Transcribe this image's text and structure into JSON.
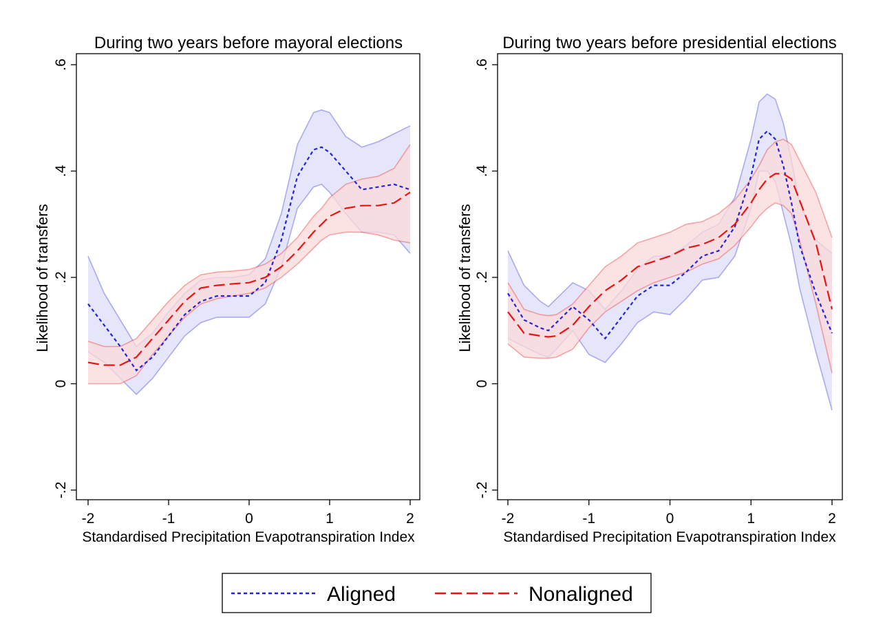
{
  "legend": {
    "items": [
      {
        "label": "Aligned",
        "color": "#2222dd",
        "style": "dotted"
      },
      {
        "label": "Nonaligned",
        "color": "#ee1111",
        "style": "dashed"
      }
    ]
  },
  "chart_data": [
    {
      "type": "line",
      "title": "During two years before mayoral elections",
      "xlabel": "Standardised Precipitation Evapotranspiration Index",
      "ylabel": "Likelihood of transfers",
      "xlim": [
        -2,
        2
      ],
      "ylim": [
        -0.2,
        0.6
      ],
      "xticks": [
        -2,
        -1,
        0,
        1,
        2
      ],
      "xtick_labels": [
        "-2",
        "-1",
        "0",
        "1",
        "2"
      ],
      "yticks": [
        -0.2,
        0,
        0.2,
        0.4,
        0.6
      ],
      "ytick_labels": [
        "-.2",
        "0",
        ".2",
        ".4",
        ".6"
      ],
      "grid": false,
      "x": [
        -2.0,
        -1.8,
        -1.6,
        -1.4,
        -1.2,
        -1.0,
        -0.8,
        -0.6,
        -0.4,
        -0.2,
        0.0,
        0.2,
        0.4,
        0.6,
        0.8,
        0.9,
        1.0,
        1.2,
        1.4,
        1.6,
        1.8,
        2.0
      ],
      "series": [
        {
          "name": "Aligned",
          "color": "#2222dd",
          "fill": "#dedefa",
          "values": [
            0.15,
            0.11,
            0.07,
            0.025,
            0.05,
            0.09,
            0.13,
            0.155,
            0.165,
            0.165,
            0.165,
            0.19,
            0.27,
            0.39,
            0.44,
            0.445,
            0.435,
            0.4,
            0.365,
            0.37,
            0.375,
            0.365
          ],
          "lower": [
            0.06,
            0.04,
            0.01,
            -0.02,
            0.01,
            0.05,
            0.09,
            0.115,
            0.125,
            0.125,
            0.125,
            0.15,
            0.22,
            0.33,
            0.37,
            0.375,
            0.36,
            0.32,
            0.285,
            0.285,
            0.28,
            0.245
          ],
          "upper": [
            0.24,
            0.17,
            0.12,
            0.07,
            0.095,
            0.135,
            0.17,
            0.195,
            0.2,
            0.2,
            0.205,
            0.235,
            0.32,
            0.45,
            0.51,
            0.515,
            0.51,
            0.465,
            0.445,
            0.455,
            0.47,
            0.485
          ]
        },
        {
          "name": "Nonaligned",
          "color": "#ee1111",
          "fill": "#fbdada",
          "values": [
            0.04,
            0.035,
            0.035,
            0.05,
            0.085,
            0.12,
            0.155,
            0.18,
            0.185,
            0.188,
            0.19,
            0.2,
            0.22,
            0.25,
            0.285,
            0.3,
            0.315,
            0.33,
            0.335,
            0.335,
            0.34,
            0.36
          ],
          "lower": [
            0.0,
            0.0,
            0.0,
            0.015,
            0.055,
            0.09,
            0.125,
            0.15,
            0.16,
            0.165,
            0.17,
            0.18,
            0.2,
            0.225,
            0.255,
            0.27,
            0.28,
            0.285,
            0.285,
            0.28,
            0.27,
            0.265
          ],
          "upper": [
            0.08,
            0.07,
            0.07,
            0.085,
            0.12,
            0.155,
            0.185,
            0.205,
            0.21,
            0.212,
            0.215,
            0.225,
            0.245,
            0.275,
            0.315,
            0.33,
            0.35,
            0.375,
            0.385,
            0.39,
            0.405,
            0.45
          ]
        }
      ]
    },
    {
      "type": "line",
      "title": "During two years before presidential elections",
      "xlabel": "Standardised Precipitation Evapotranspiration Index",
      "ylabel": "Likelihood of transfers",
      "xlim": [
        -2,
        2
      ],
      "ylim": [
        -0.2,
        0.6
      ],
      "xticks": [
        -2,
        -1,
        0,
        1,
        2
      ],
      "xtick_labels": [
        "-2",
        "-1",
        "0",
        "1",
        "2"
      ],
      "yticks": [
        -0.2,
        0,
        0.2,
        0.4,
        0.6
      ],
      "ytick_labels": [
        "-.2",
        "0",
        ".2",
        ".4",
        ".6"
      ],
      "grid": false,
      "x": [
        -2.0,
        -1.8,
        -1.6,
        -1.5,
        -1.4,
        -1.2,
        -1.0,
        -0.8,
        -0.6,
        -0.4,
        -0.2,
        0.0,
        0.2,
        0.4,
        0.6,
        0.8,
        1.0,
        1.1,
        1.2,
        1.3,
        1.4,
        1.5,
        1.6,
        1.8,
        2.0
      ],
      "series": [
        {
          "name": "Aligned",
          "color": "#2222dd",
          "fill": "#dedefa",
          "values": [
            0.17,
            0.12,
            0.105,
            0.1,
            0.115,
            0.145,
            0.12,
            0.085,
            0.125,
            0.165,
            0.185,
            0.185,
            0.21,
            0.24,
            0.25,
            0.295,
            0.39,
            0.46,
            0.475,
            0.46,
            0.41,
            0.34,
            0.26,
            0.17,
            0.095
          ],
          "lower": [
            0.085,
            0.07,
            0.055,
            0.05,
            0.065,
            0.1,
            0.055,
            0.04,
            0.075,
            0.115,
            0.135,
            0.13,
            0.16,
            0.195,
            0.2,
            0.24,
            0.33,
            0.4,
            0.4,
            0.38,
            0.32,
            0.26,
            0.18,
            0.06,
            -0.05
          ],
          "upper": [
            0.25,
            0.185,
            0.155,
            0.145,
            0.16,
            0.19,
            0.175,
            0.14,
            0.175,
            0.215,
            0.24,
            0.24,
            0.26,
            0.285,
            0.3,
            0.35,
            0.46,
            0.53,
            0.545,
            0.535,
            0.49,
            0.42,
            0.34,
            0.27,
            0.245
          ]
        },
        {
          "name": "Nonaligned",
          "color": "#ee1111",
          "fill": "#fbdada",
          "values": [
            0.135,
            0.095,
            0.09,
            0.088,
            0.09,
            0.11,
            0.145,
            0.175,
            0.195,
            0.22,
            0.23,
            0.24,
            0.255,
            0.262,
            0.275,
            0.3,
            0.34,
            0.365,
            0.385,
            0.395,
            0.395,
            0.385,
            0.345,
            0.265,
            0.14
          ],
          "lower": [
            0.075,
            0.05,
            0.048,
            0.048,
            0.05,
            0.065,
            0.105,
            0.135,
            0.155,
            0.175,
            0.19,
            0.2,
            0.21,
            0.225,
            0.235,
            0.26,
            0.295,
            0.315,
            0.33,
            0.34,
            0.335,
            0.32,
            0.27,
            0.15,
            0.02
          ],
          "upper": [
            0.19,
            0.14,
            0.13,
            0.128,
            0.13,
            0.15,
            0.185,
            0.22,
            0.24,
            0.265,
            0.275,
            0.285,
            0.3,
            0.305,
            0.32,
            0.345,
            0.385,
            0.41,
            0.44,
            0.455,
            0.46,
            0.45,
            0.42,
            0.36,
            0.275
          ]
        }
      ]
    }
  ]
}
